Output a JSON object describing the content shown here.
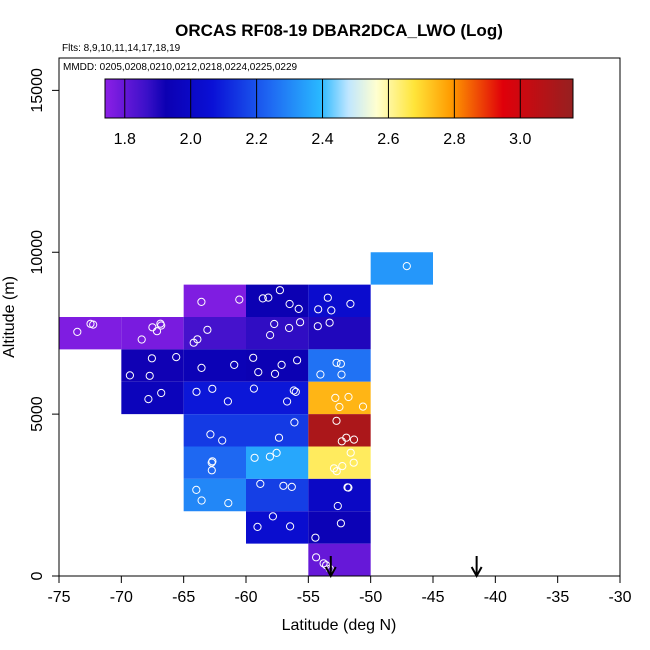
{
  "chart_data": {
    "type": "heatmap",
    "title": "ORCAS RF08-19 DBAR2DCA_LWO (Log)",
    "flights_label": "Flts: 8,9,10,11,14,17,18,19",
    "mmdd_label": "MMDD: 0205,0208,0210,0212,0218,0224,0225,0229",
    "xlabel": "Latitude (deg N)",
    "ylabel": "Altitude (m)",
    "xlim": [
      -75,
      -30
    ],
    "ylim": [
      0,
      16000
    ],
    "x_ticks": [
      -75,
      -70,
      -65,
      -60,
      -55,
      -50,
      -45,
      -40,
      -35,
      -30
    ],
    "x_tick_labels": [
      "-75",
      "-70",
      "-65",
      "-60",
      "-55",
      "-50",
      "-45",
      "-40",
      "-35",
      "-30"
    ],
    "y_ticks": [
      0,
      5000,
      10000,
      15000
    ],
    "y_tick_labels": [
      "0",
      "5000",
      "10000",
      "15000"
    ],
    "colorbar": {
      "min": 1.74,
      "max": 3.16,
      "ticks": [
        1.8,
        2.0,
        2.2,
        2.4,
        2.6,
        2.8,
        3.0
      ],
      "tick_labels": [
        "1.8",
        "2.0",
        "2.2",
        "2.4",
        "2.6",
        "2.8",
        "3.0"
      ]
    },
    "bin_width_deg": 5,
    "bin_height_m": 1000,
    "cells": [
      {
        "lat": -75,
        "alt": 7000,
        "value": 1.76
      },
      {
        "lat": -70,
        "alt": 7000,
        "value": 1.77
      },
      {
        "lat": -70,
        "alt": 6000,
        "value": 1.92
      },
      {
        "lat": -70,
        "alt": 5000,
        "value": 1.96
      },
      {
        "lat": -65,
        "alt": 8000,
        "value": 1.76
      },
      {
        "lat": -65,
        "alt": 7000,
        "value": 1.85
      },
      {
        "lat": -65,
        "alt": 6000,
        "value": 1.94
      },
      {
        "lat": -65,
        "alt": 5000,
        "value": 2.08
      },
      {
        "lat": -65,
        "alt": 4000,
        "value": 2.15
      },
      {
        "lat": -65,
        "alt": 3000,
        "value": 2.24
      },
      {
        "lat": -65,
        "alt": 2000,
        "value": 2.3
      },
      {
        "lat": -60,
        "alt": 8000,
        "value": 1.93
      },
      {
        "lat": -60,
        "alt": 7000,
        "value": 1.88
      },
      {
        "lat": -60,
        "alt": 6000,
        "value": 1.93
      },
      {
        "lat": -60,
        "alt": 5000,
        "value": 2.08
      },
      {
        "lat": -60,
        "alt": 4000,
        "value": 2.15
      },
      {
        "lat": -60,
        "alt": 3000,
        "value": 2.36
      },
      {
        "lat": -60,
        "alt": 2000,
        "value": 2.16
      },
      {
        "lat": -60,
        "alt": 1000,
        "value": 2.04
      },
      {
        "lat": -55,
        "alt": 8000,
        "value": 2.03
      },
      {
        "lat": -55,
        "alt": 7000,
        "value": 1.9
      },
      {
        "lat": -55,
        "alt": 6000,
        "value": 2.26
      },
      {
        "lat": -55,
        "alt": 5000,
        "value": 2.75
      },
      {
        "lat": -55,
        "alt": 4000,
        "value": 3.1
      },
      {
        "lat": -55,
        "alt": 3000,
        "value": 2.65
      },
      {
        "lat": -55,
        "alt": 2000,
        "value": 2.0
      },
      {
        "lat": -55,
        "alt": 1000,
        "value": 1.94
      },
      {
        "lat": -55,
        "alt": 0,
        "value": 1.8
      },
      {
        "lat": -50,
        "alt": 9000,
        "value": 2.33
      }
    ],
    "obs_markers_latitude": [
      -53.2,
      -41.5
    ]
  }
}
